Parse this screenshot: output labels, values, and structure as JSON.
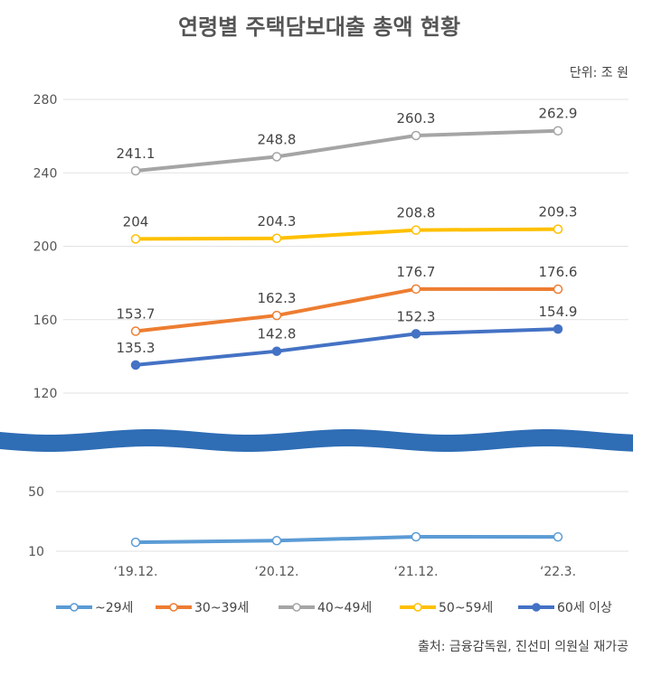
{
  "chart_data": {
    "type": "line",
    "title": "연령별 주택담보대출 총액 현황",
    "unit": "단위: 조 원",
    "source": "출처: 금융감독원, 진선미 의원실 재가공",
    "categories": [
      "‘19.12.",
      "‘20.12.",
      "‘21.12.",
      "‘22.3."
    ],
    "upper_axis": {
      "ticks": [
        120,
        160,
        200,
        240,
        280
      ],
      "ylim": [
        120,
        280
      ]
    },
    "lower_axis": {
      "ticks": [
        10,
        50
      ],
      "ylim": [
        10,
        50
      ]
    },
    "axis_break": true,
    "grid": true,
    "legend_position": "bottom",
    "series": [
      {
        "name": "~29세",
        "values": [
          16,
          17.1,
          19.7,
          19.6
        ],
        "color": "#5b9bd5",
        "marker": "hollow",
        "axis": "lower",
        "labels": false
      },
      {
        "name": "30~39세",
        "values": [
          153.7,
          162.3,
          176.7,
          176.6
        ],
        "color": "#ed7d31",
        "marker": "hollow",
        "axis": "upper",
        "labels": true
      },
      {
        "name": "40~49세",
        "values": [
          241.1,
          248.8,
          260.3,
          262.9
        ],
        "color": "#a5a5a5",
        "marker": "hollow",
        "axis": "upper",
        "labels": true
      },
      {
        "name": "50~59세",
        "values": [
          204,
          204.3,
          208.8,
          209.3
        ],
        "color": "#ffc000",
        "marker": "hollow",
        "axis": "upper",
        "labels": true
      },
      {
        "name": "60세 이상",
        "values": [
          135.3,
          142.8,
          152.3,
          154.9
        ],
        "color": "#4472c4",
        "marker": "filled",
        "axis": "upper",
        "labels": true
      }
    ],
    "break_color": "#2f6db5"
  }
}
